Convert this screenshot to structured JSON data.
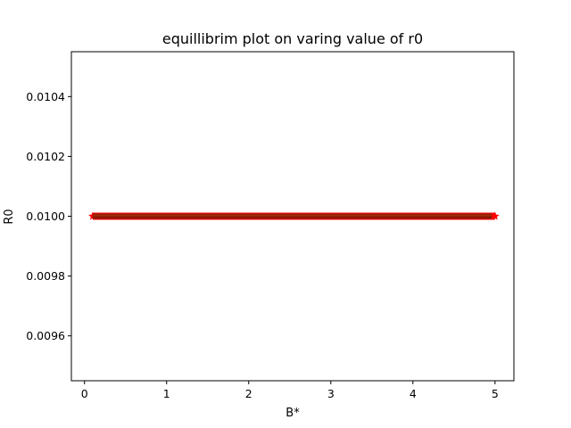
{
  "chart_data": {
    "type": "line",
    "title": "equillibrim plot on varing value of r0",
    "xlabel": "B*",
    "ylabel": "R0",
    "xlim": [
      -0.16,
      5.23
    ],
    "ylim": [
      0.00945,
      0.01055
    ],
    "xticks": [
      0,
      1,
      2,
      3,
      4,
      5
    ],
    "xtick_labels": [
      "0",
      "1",
      "2",
      "3",
      "4",
      "5"
    ],
    "yticks": [
      0.0096,
      0.0098,
      0.01,
      0.0102,
      0.0104
    ],
    "ytick_labels": [
      "0.0096",
      "0.0098",
      "0.0100",
      "0.0102",
      "0.0104"
    ],
    "grid": false,
    "series": [
      {
        "color": "#ff0000",
        "marker": "star",
        "x_start": 0.1,
        "x_end": 5.0,
        "y": 0.01
      },
      {
        "color": "#8b1a00",
        "marker": "thick-line",
        "x_start": 0.1,
        "x_end": 4.96,
        "y": 0.01
      }
    ]
  }
}
